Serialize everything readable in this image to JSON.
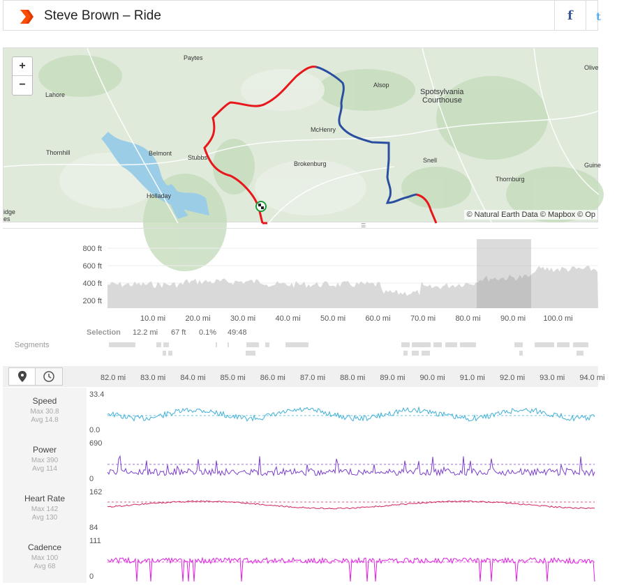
{
  "header": {
    "title": "Steve Brown – Ride",
    "social": {
      "facebook_icon": "f",
      "twitter_icon": "t"
    }
  },
  "map": {
    "zoom_in": "+",
    "zoom_out": "−",
    "attribution": "© Natural Earth Data © Mapbox © Op",
    "places": [
      {
        "name": "Paytes"
      },
      {
        "name": "Lahore"
      },
      {
        "name": "Alsop"
      },
      {
        "name": "Spotsylvania"
      },
      {
        "name": "Courthouse"
      },
      {
        "name": "Olive"
      },
      {
        "name": "McHenry"
      },
      {
        "name": "Thornhill"
      },
      {
        "name": "Belmont"
      },
      {
        "name": "Stubbs"
      },
      {
        "name": "Brokenburg"
      },
      {
        "name": "Snell"
      },
      {
        "name": "Guine"
      },
      {
        "name": "Thornburg"
      },
      {
        "name": "Holladay"
      },
      {
        "name": "idge"
      },
      {
        "name": "es"
      }
    ]
  },
  "elevation": {
    "y_ticks": [
      "800 ft",
      "600 ft",
      "400 ft",
      "200 ft"
    ],
    "x_ticks": [
      "10.0 mi",
      "20.0 mi",
      "30.0 mi",
      "40.0 mi",
      "50.0 mi",
      "60.0 mi",
      "70.0 mi",
      "80.0 mi",
      "90.0 mi",
      "100.0 mi"
    ],
    "selection": {
      "label": "Selection",
      "distance": "12.2 mi",
      "gain": "67 ft",
      "grade": "0.1%",
      "time": "49:48"
    },
    "segments_label": "Segments"
  },
  "detail": {
    "x_ticks": [
      "82.0 mi",
      "83.0 mi",
      "84.0 mi",
      "85.0 mi",
      "86.0 mi",
      "87.0 mi",
      "88.0 mi",
      "89.0 mi",
      "90.0 mi",
      "91.0 mi",
      "92.0 mi",
      "93.0 mi",
      "94.0 mi"
    ],
    "streams": [
      {
        "name": "Speed",
        "max": "Max 30.8",
        "avg": "Avg 14.8",
        "top": "33.4",
        "bottom": "0.0",
        "color": "#3fb0d8"
      },
      {
        "name": "Power",
        "max": "Max 390",
        "avg": "Avg 114",
        "top": "690",
        "bottom": "0",
        "color": "#7b3fd0"
      },
      {
        "name": "Heart Rate",
        "max": "Max 142",
        "avg": "Avg 130",
        "top": "162",
        "bottom": "84",
        "color": "#d0245a"
      },
      {
        "name": "Cadence",
        "max": "Max 100",
        "avg": "Avg 68",
        "top": "111",
        "bottom": "0",
        "color": "#e020e0"
      }
    ]
  }
}
